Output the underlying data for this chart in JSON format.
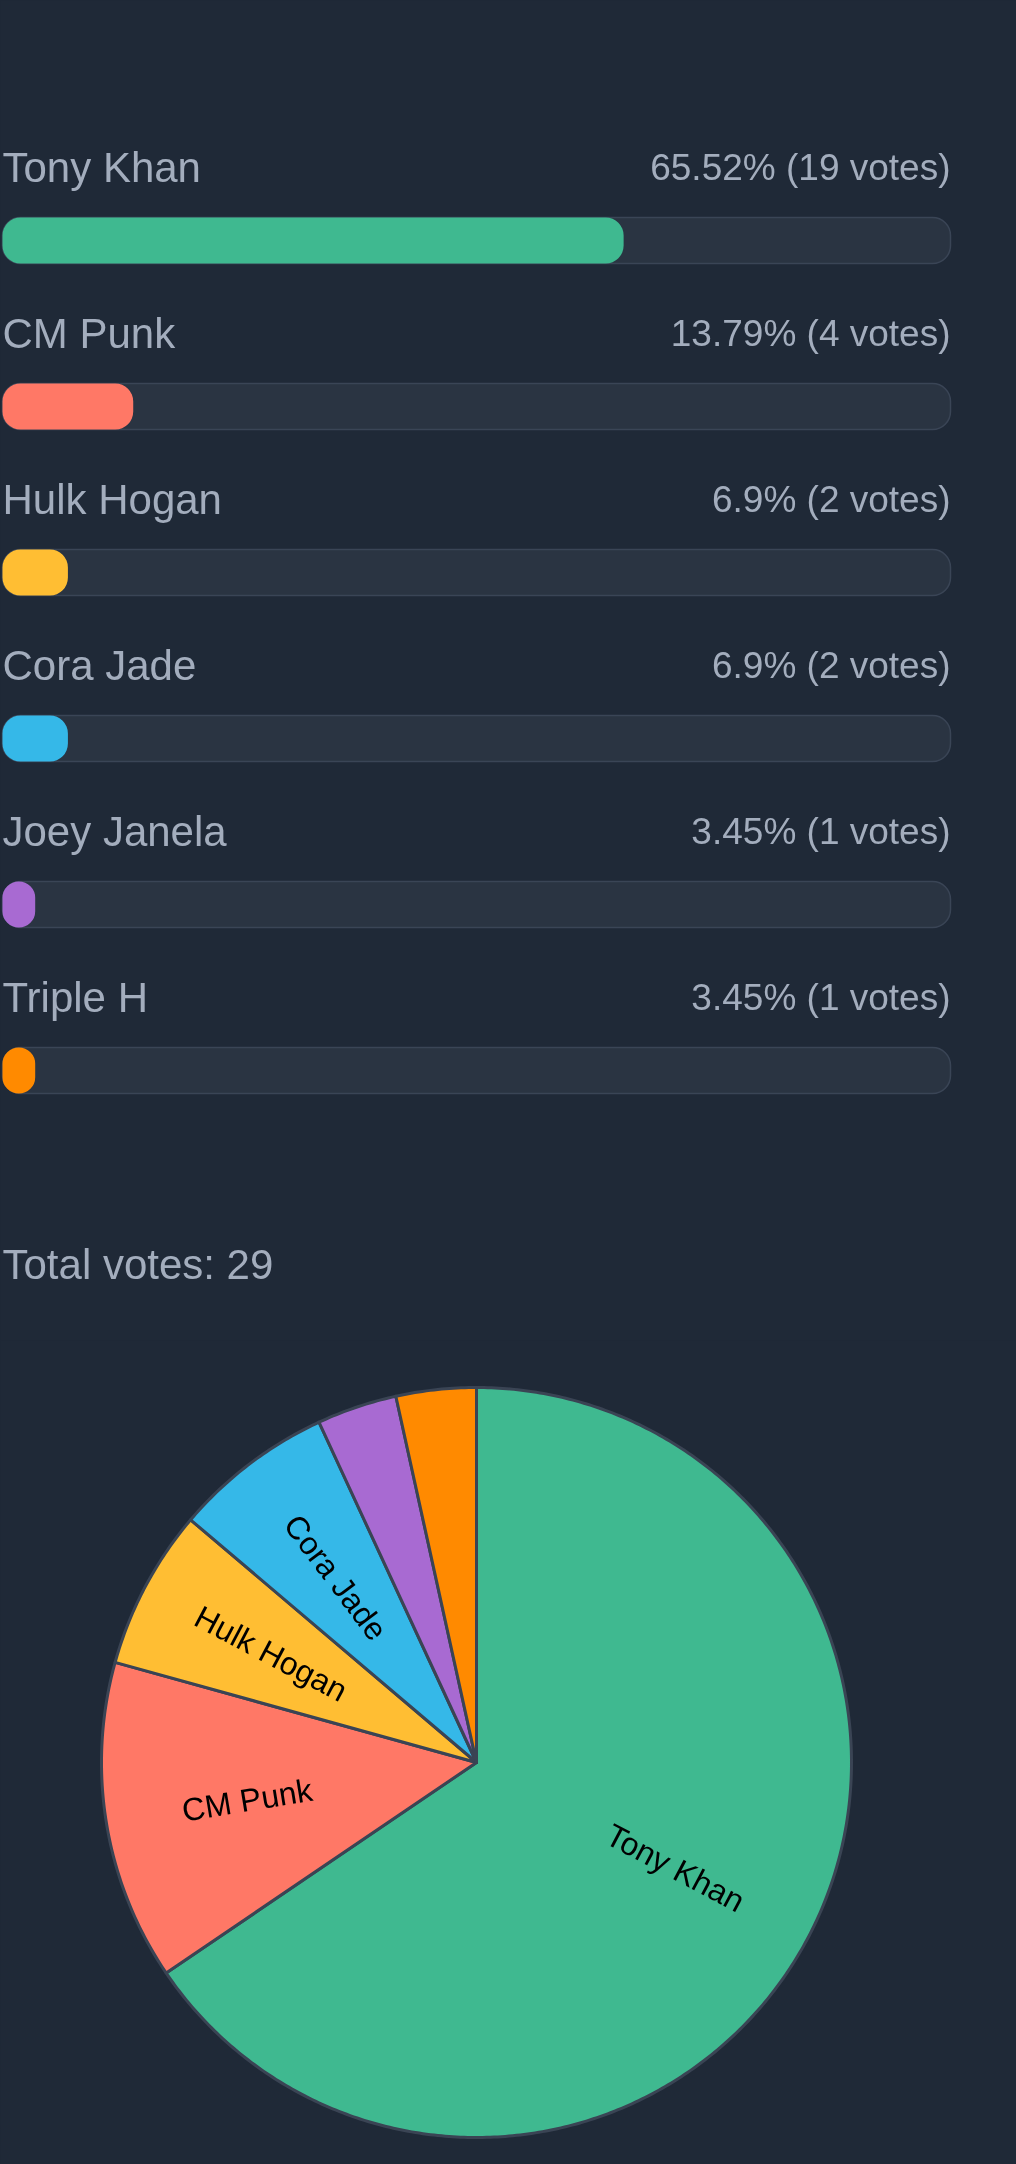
{
  "chart_data": [
    {
      "type": "bar",
      "orientation": "horizontal",
      "categories": [
        "Tony Khan",
        "CM Punk",
        "Hulk Hogan",
        "Cora Jade",
        "Joey Janela",
        "Triple H"
      ],
      "values": [
        65.52,
        13.79,
        6.9,
        6.9,
        3.45,
        3.45
      ],
      "value_labels": [
        "65.52% (19 votes)",
        "13.79% (4 votes)",
        "6.9% (2 votes)",
        "6.9% (2 votes)",
        "3.45% (1 votes)",
        "3.45% (1 votes)"
      ],
      "colors": [
        "#3fb990",
        "#ff7866",
        "#ffbe33",
        "#35b8e8",
        "#a86ad2",
        "#ff8a00"
      ],
      "xlim": [
        0,
        100
      ],
      "annotations": [
        "Total votes: 29"
      ]
    },
    {
      "type": "pie",
      "categories": [
        "Tony Khan",
        "CM Punk",
        "Hulk Hogan",
        "Cora Jade",
        null,
        null
      ],
      "values": [
        65.52,
        13.79,
        6.9,
        6.9,
        3.45,
        3.45
      ],
      "colors": [
        "#3fb990",
        "#ff7866",
        "#ffbe33",
        "#35b8e8",
        "#a86ad2",
        "#ff8a00"
      ]
    }
  ]
}
